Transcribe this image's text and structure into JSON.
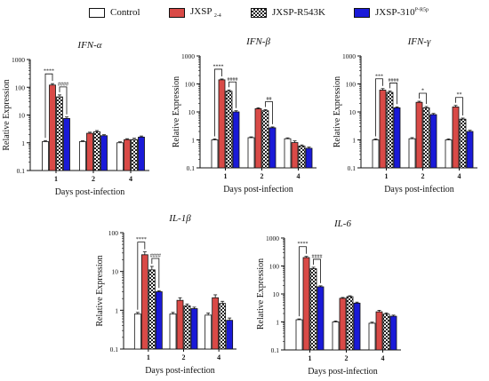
{
  "legend": [
    {
      "name": "Control",
      "suffix": "",
      "suffix_type": "",
      "color": "#ffffff",
      "pattern": "none"
    },
    {
      "name": "JXSP",
      "suffix": "2-4",
      "suffix_type": "sub",
      "color": "#d94a47",
      "pattern": "none"
    },
    {
      "name": "JXSP-R543K",
      "suffix": "",
      "suffix_type": "",
      "color": "#ffffff",
      "pattern": "checker"
    },
    {
      "name": "JXSP-310",
      "suffix": "P-R5p",
      "suffix_type": "sup",
      "color": "#1a1ad8",
      "pattern": "none"
    }
  ],
  "chart_data": [
    {
      "type": "bar",
      "title": "IFN-α",
      "ylabel": "Relative Expression",
      "xlabel": "Days post-infection",
      "yscale": "log",
      "ylim": [
        0.1,
        1000
      ],
      "yticks": [
        "0.1",
        "1",
        "10",
        "100",
        "1000"
      ],
      "categories": [
        "1",
        "2",
        "4"
      ],
      "series": [
        {
          "name": "Control",
          "values": [
            1.1,
            1.1,
            1.0
          ],
          "errors": [
            0.1,
            0.08,
            0.08
          ]
        },
        {
          "name": "JXSP2-4",
          "values": [
            120,
            2.2,
            1.3
          ],
          "errors": [
            15,
            0.2,
            0.1
          ]
        },
        {
          "name": "JXSP-R543K",
          "values": [
            45,
            2.5,
            1.3
          ],
          "errors": [
            8,
            0.25,
            0.15
          ]
        },
        {
          "name": "JXSP-310P-R5p",
          "values": [
            7.5,
            1.8,
            1.6
          ],
          "errors": [
            1.0,
            0.15,
            0.15
          ]
        }
      ],
      "significance": [
        {
          "category": "1",
          "from": 0,
          "to": 1,
          "label": "****"
        },
        {
          "category": "1",
          "from": 2,
          "to": 3,
          "label": "####"
        }
      ]
    },
    {
      "type": "bar",
      "title": "IFN-β",
      "ylabel": "Relative Expression",
      "xlabel": "Days post-infection",
      "yscale": "log",
      "ylim": [
        0.1,
        1000
      ],
      "yticks": [
        "0.1",
        "1",
        "10",
        "100",
        "1000"
      ],
      "categories": [
        "1",
        "2",
        "4"
      ],
      "series": [
        {
          "name": "Control",
          "values": [
            1.0,
            1.2,
            1.1
          ],
          "errors": [
            0.08,
            0.08,
            0.08
          ]
        },
        {
          "name": "JXSP2-4",
          "values": [
            140,
            13,
            0.8
          ],
          "errors": [
            10,
            1.0,
            0.12
          ]
        },
        {
          "name": "JXSP-R543K",
          "values": [
            55,
            11,
            0.6
          ],
          "errors": [
            6,
            1.0,
            0.06
          ]
        },
        {
          "name": "JXSP-310P-R5p",
          "values": [
            10,
            2.7,
            0.5
          ],
          "errors": [
            1.0,
            0.2,
            0.05
          ]
        }
      ],
      "significance": [
        {
          "category": "1",
          "from": 0,
          "to": 1,
          "label": "****"
        },
        {
          "category": "1",
          "from": 2,
          "to": 3,
          "label": "####"
        },
        {
          "category": "2",
          "from": 2,
          "to": 3,
          "label": "##"
        }
      ]
    },
    {
      "type": "bar",
      "title": "IFN-γ",
      "ylabel": "Relative Expression",
      "xlabel": "Days post-infection",
      "yscale": "log",
      "ylim": [
        0.1,
        1000
      ],
      "yticks": [
        "0.1",
        "1",
        "10",
        "100",
        "1000"
      ],
      "categories": [
        "1",
        "2",
        "4"
      ],
      "series": [
        {
          "name": "Control",
          "values": [
            1.0,
            1.1,
            1.0
          ],
          "errors": [
            0.08,
            0.1,
            0.08
          ]
        },
        {
          "name": "JXSP2-4",
          "values": [
            60,
            22,
            15
          ],
          "errors": [
            8,
            2,
            2
          ]
        },
        {
          "name": "JXSP-R543K",
          "values": [
            50,
            14,
            5.5
          ],
          "errors": [
            6,
            1.5,
            0.5
          ]
        },
        {
          "name": "JXSP-310P-R5p",
          "values": [
            14,
            8,
            2
          ],
          "errors": [
            1.2,
            0.8,
            0.2
          ]
        }
      ],
      "significance": [
        {
          "category": "1",
          "from": 0,
          "to": 1,
          "label": "***"
        },
        {
          "category": "1",
          "from": 2,
          "to": 3,
          "label": "####"
        },
        {
          "category": "2",
          "from": 1,
          "to": 2,
          "label": "*"
        },
        {
          "category": "4",
          "from": 1,
          "to": 2,
          "label": "**"
        }
      ]
    },
    {
      "type": "bar",
      "title": "IL-1β",
      "ylabel": "Relative Expression",
      "xlabel": "Days post-infection",
      "yscale": "log",
      "ylim": [
        0.1,
        100
      ],
      "yticks": [
        "0.1",
        "1",
        "10",
        "100"
      ],
      "categories": [
        "1",
        "2",
        "4"
      ],
      "series": [
        {
          "name": "Control",
          "values": [
            0.8,
            0.8,
            0.75
          ],
          "errors": [
            0.08,
            0.08,
            0.1
          ]
        },
        {
          "name": "JXSP2-4",
          "values": [
            27,
            1.8,
            2.1
          ],
          "errors": [
            5,
            0.3,
            0.4
          ]
        },
        {
          "name": "JXSP-R543K",
          "values": [
            11,
            1.3,
            1.5
          ],
          "errors": [
            2.5,
            0.15,
            0.2
          ]
        },
        {
          "name": "JXSP-310P-R5p",
          "values": [
            3,
            1.1,
            0.55
          ],
          "errors": [
            0.2,
            0.1,
            0.08
          ]
        }
      ],
      "significance": [
        {
          "category": "1",
          "from": 0,
          "to": 1,
          "label": "****"
        },
        {
          "category": "1",
          "from": 2,
          "to": 3,
          "label": "####"
        }
      ]
    },
    {
      "type": "bar",
      "title": "IL-6",
      "ylabel": "Relative Expression",
      "xlabel": "Days post-infection",
      "yscale": "log",
      "ylim": [
        0.1,
        1000
      ],
      "yticks": [
        "0.1",
        "1",
        "10",
        "100",
        "1000"
      ],
      "categories": [
        "1",
        "2",
        "4"
      ],
      "series": [
        {
          "name": "Control",
          "values": [
            1.2,
            1.0,
            0.9
          ],
          "errors": [
            0.08,
            0.08,
            0.08
          ]
        },
        {
          "name": "JXSP2-4",
          "values": [
            200,
            7,
            2.3
          ],
          "errors": [
            20,
            0.5,
            0.3
          ]
        },
        {
          "name": "JXSP-R543K",
          "values": [
            80,
            8,
            1.9
          ],
          "errors": [
            10,
            0.6,
            0.2
          ]
        },
        {
          "name": "JXSP-310P-R5p",
          "values": [
            18,
            4.7,
            1.6
          ],
          "errors": [
            1.5,
            0.4,
            0.15
          ]
        }
      ],
      "significance": [
        {
          "category": "1",
          "from": 0,
          "to": 1,
          "label": "****"
        },
        {
          "category": "1",
          "from": 2,
          "to": 3,
          "label": "####"
        }
      ]
    }
  ]
}
